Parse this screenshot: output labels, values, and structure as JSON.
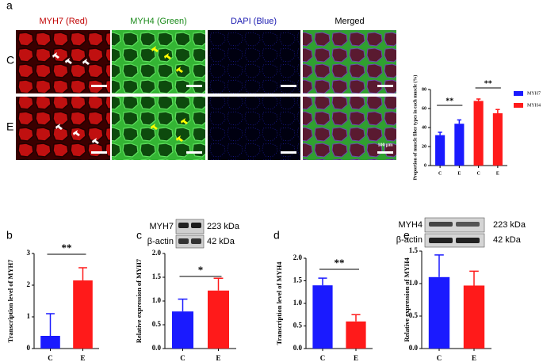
{
  "figure": {
    "panel_labels": [
      "a",
      "b",
      "c",
      "d",
      "e"
    ],
    "image_panel": {
      "columns": [
        "MYH7 (Red)",
        "MYH4 (Green)",
        "DAPI (Blue)",
        "Merged"
      ],
      "rows": [
        "C",
        "E"
      ],
      "scale_bar": "100 μm"
    },
    "blots": [
      {
        "target": "MYH7",
        "target_size": "223 kDa",
        "control": "β-actin",
        "control_size": "42 kDa"
      },
      {
        "target": "MYH4",
        "target_size": "223 kDa",
        "control": "β-actin",
        "control_size": "42 kDa"
      }
    ]
  },
  "chart_data": [
    {
      "type": "bar",
      "ylabel": "Proportion of muscle fiber types in each muscle (%)",
      "categories": [
        "C",
        "E",
        "C",
        "E"
      ],
      "series": [
        {
          "name": "MYH7",
          "color": "#1a1aff",
          "values": [
            32,
            44,
            null,
            null
          ],
          "errors": [
            3,
            4,
            null,
            null
          ]
        },
        {
          "name": "MYH4",
          "color": "#ff1a1a",
          "values": [
            null,
            null,
            68,
            55
          ],
          "errors": [
            null,
            null,
            2,
            4
          ]
        }
      ],
      "ylim": [
        0,
        80
      ],
      "yticks": [
        0,
        20,
        40,
        60,
        80
      ],
      "annotations": [
        "**",
        "**"
      ],
      "legend": "right"
    },
    {
      "type": "bar",
      "ylabel": "Transcription level of MYH7",
      "categories": [
        "C",
        "E"
      ],
      "values": [
        0.4,
        2.15
      ],
      "errors": [
        0.7,
        0.4
      ],
      "colors": [
        "#1a1aff",
        "#ff1a1a"
      ],
      "ylim": [
        0,
        3
      ],
      "yticks": [
        0,
        1,
        2,
        3
      ],
      "annotations": [
        "**"
      ]
    },
    {
      "type": "bar",
      "ylabel": "Relative expression of MYH7",
      "categories": [
        "C",
        "E"
      ],
      "values": [
        0.78,
        1.22
      ],
      "errors": [
        0.26,
        0.26
      ],
      "colors": [
        "#1a1aff",
        "#ff1a1a"
      ],
      "ylim": [
        0,
        2
      ],
      "yticks": [
        {
          "value": 0,
          "label": "0.0"
        },
        {
          "value": 0.5,
          "label": "0.5"
        },
        {
          "value": 1,
          "label": "1.0"
        },
        {
          "value": 1.5,
          "label": "1.5"
        },
        {
          "value": 2,
          "label": "2.0"
        }
      ],
      "annotations": [
        "*"
      ]
    },
    {
      "type": "bar",
      "ylabel": "Transcription level of MYH4",
      "categories": [
        "C",
        "E"
      ],
      "values": [
        1.4,
        0.6
      ],
      "errors": [
        0.16,
        0.15
      ],
      "colors": [
        "#1a1aff",
        "#ff1a1a"
      ],
      "ylim": [
        0,
        2
      ],
      "yticks": [
        {
          "value": 0,
          "label": "0.0"
        },
        {
          "value": 0.5,
          "label": "0.5"
        },
        {
          "value": 1,
          "label": "1.0"
        },
        {
          "value": 1.5,
          "label": "1.5"
        },
        {
          "value": 2,
          "label": "2.0"
        }
      ],
      "annotations": [
        "**"
      ]
    },
    {
      "type": "bar",
      "ylabel": "Relative expression of MYH4",
      "categories": [
        "C",
        "E"
      ],
      "values": [
        1.1,
        0.97
      ],
      "errors": [
        0.34,
        0.22
      ],
      "colors": [
        "#1a1aff",
        "#ff1a1a"
      ],
      "ylim": [
        0,
        1.5
      ],
      "yticks": [
        {
          "value": 0,
          "label": "0.0"
        },
        {
          "value": 0.5,
          "label": "0.5"
        },
        {
          "value": 1,
          "label": "1.0"
        },
        {
          "value": 1.5,
          "label": "1.5"
        }
      ],
      "annotations": []
    }
  ]
}
